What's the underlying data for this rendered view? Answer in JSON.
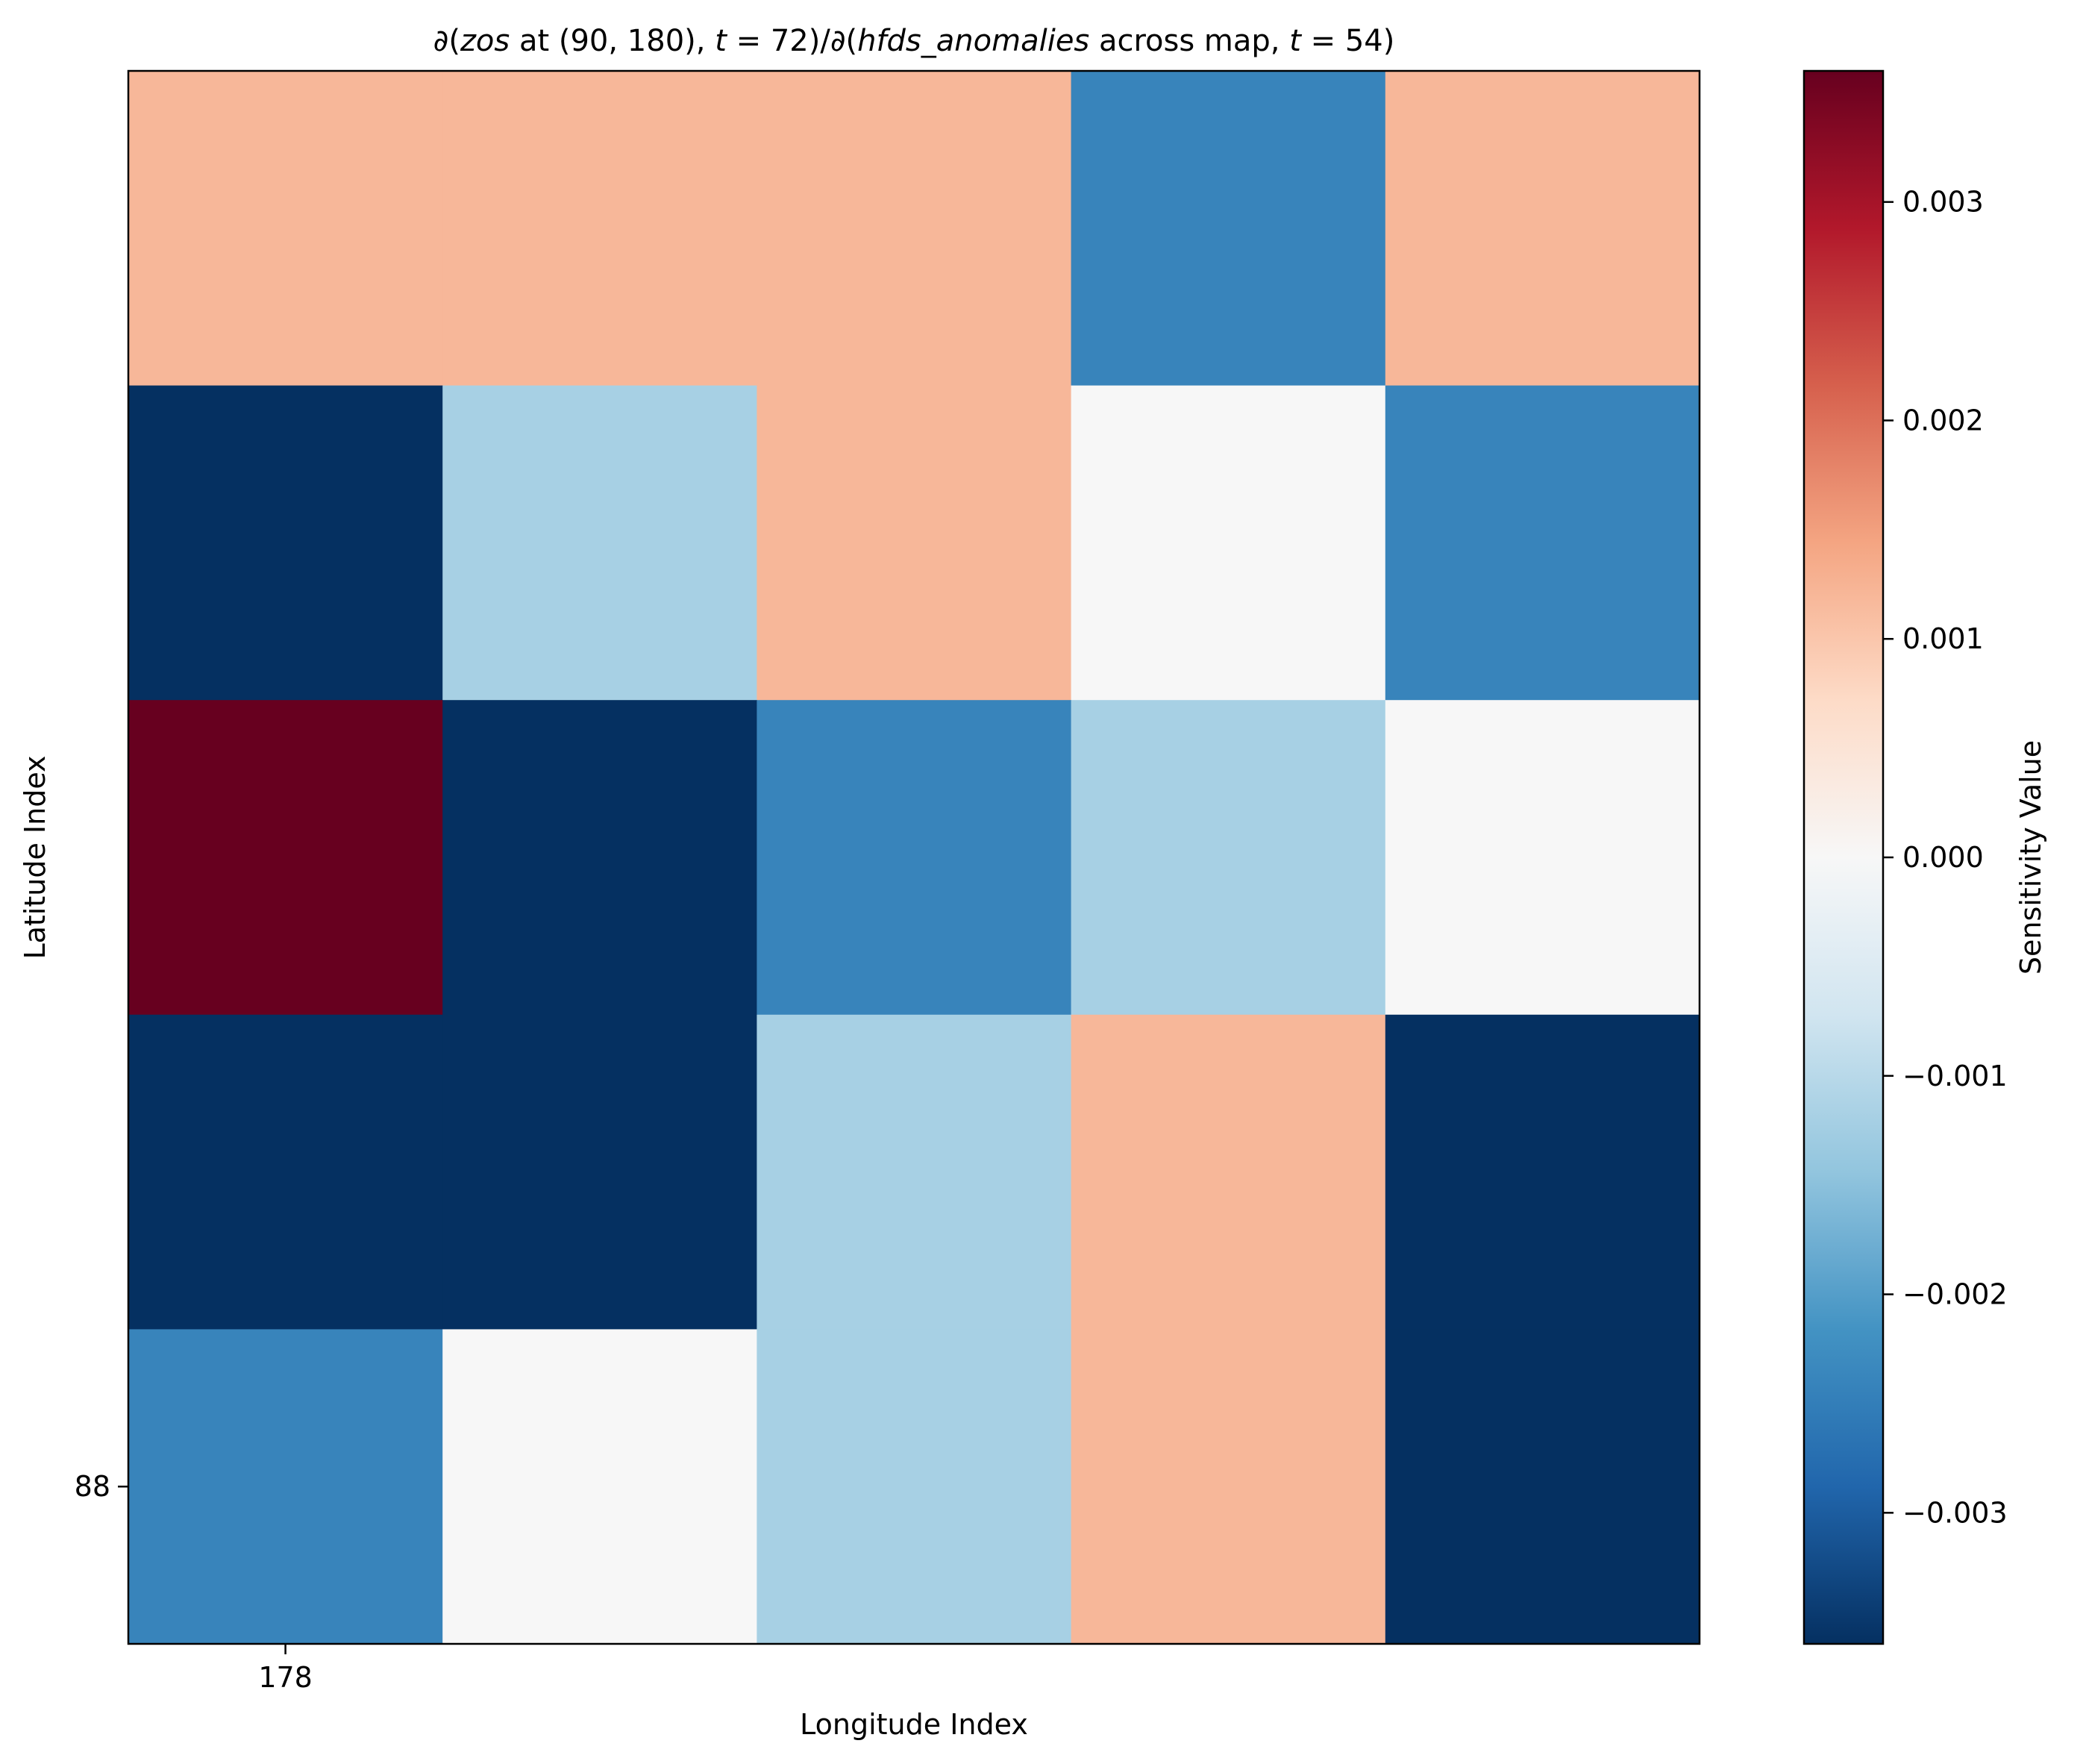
{
  "chart_data": {
    "type": "heatmap",
    "title": {
      "prefix": "∂(",
      "var1": "zos",
      "mid1": " at ",
      "loc": "(90, 180), ",
      "t1": "t",
      "eq1": " = 72)/∂(",
      "var2": "hfds_anomalies",
      "mid2": " across map, ",
      "t2": "t",
      "eq2": " = 54)"
    },
    "xlabel": "Longitude Index",
    "ylabel": "Latitude Index",
    "x_ticks": [
      {
        "label": "178",
        "col": 0
      }
    ],
    "y_ticks": [
      {
        "label": "88",
        "row": 4
      }
    ],
    "colorbar": {
      "label": "Sensitivity Value",
      "colormap": "RdBu_r",
      "vmin": -0.0036,
      "vmax": 0.0036,
      "ticks": [
        {
          "value": 0.003,
          "label": "0.003"
        },
        {
          "value": 0.002,
          "label": "0.002"
        },
        {
          "value": 0.001,
          "label": "0.001"
        },
        {
          "value": 0.0,
          "label": "0.000"
        },
        {
          "value": -0.001,
          "label": "−0.001"
        },
        {
          "value": -0.002,
          "label": "−0.002"
        },
        {
          "value": -0.003,
          "label": "−0.003"
        }
      ]
    },
    "n_rows": 5,
    "n_cols": 5,
    "values": [
      [
        0.0012,
        0.0012,
        0.0012,
        -0.0024,
        0.0012
      ],
      [
        -0.0036,
        -0.0012,
        0.0012,
        0.0,
        -0.0024
      ],
      [
        0.0036,
        -0.0036,
        -0.0024,
        -0.0012,
        0.0
      ],
      [
        -0.0036,
        -0.0036,
        -0.0012,
        0.0012,
        -0.0036
      ],
      [
        -0.0024,
        0.0,
        -0.0012,
        0.0012,
        -0.0036
      ]
    ]
  }
}
